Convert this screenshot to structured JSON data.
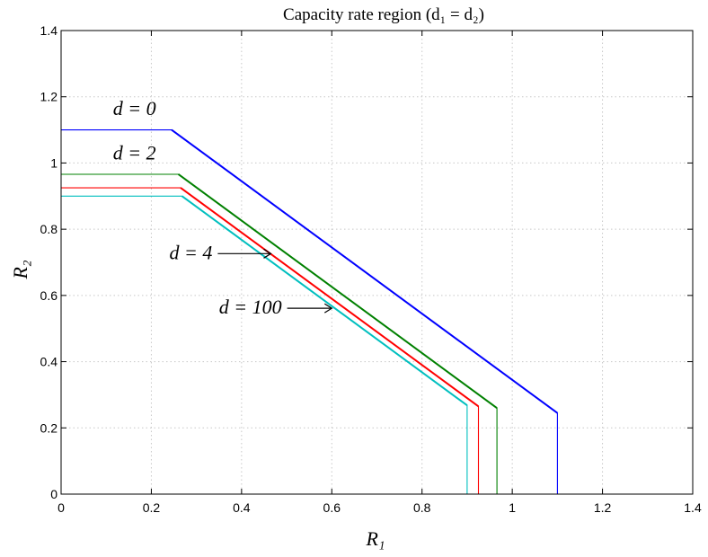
{
  "chart_data": {
    "type": "line",
    "title": "Capacity rate region (d₁ = d₂)",
    "xlabel": "R₁",
    "ylabel": "R₂",
    "xlim": [
      0,
      1.4
    ],
    "ylim": [
      0,
      1.4
    ],
    "xticks": [
      "0",
      "0.2",
      "0.4",
      "0.6",
      "0.8",
      "1",
      "1.2",
      "1.4"
    ],
    "yticks": [
      "0",
      "0.2",
      "0.4",
      "0.6",
      "0.8",
      "1",
      "1.2",
      "1.4"
    ],
    "grid": true,
    "series": [
      {
        "color": "#0000ff",
        "x": [
          0,
          0.245,
          1.1,
          1.1
        ],
        "y": [
          1.1,
          1.1,
          0.245,
          0
        ]
      },
      {
        "color": "#008000",
        "x": [
          0,
          0.26,
          0.966,
          0.966
        ],
        "y": [
          0.966,
          0.966,
          0.26,
          0
        ]
      },
      {
        "color": "#ff0000",
        "x": [
          0,
          0.265,
          0.925,
          0.925
        ],
        "y": [
          0.925,
          0.925,
          0.265,
          0
        ]
      },
      {
        "color": "#00bfbf",
        "x": [
          0,
          0.268,
          0.9,
          0.9
        ],
        "y": [
          0.9,
          0.9,
          0.268,
          0
        ]
      }
    ],
    "annotations": [
      {
        "text": "d = 0",
        "x": 0.115,
        "y": 1.145,
        "arrow": false
      },
      {
        "text": "d = 2",
        "x": 0.115,
        "y": 1.01,
        "arrow": false
      },
      {
        "text": "d = 4",
        "x": 0.24,
        "y": 0.71,
        "arrow": true,
        "arrow_to": [
          0.465,
          0.71
        ]
      },
      {
        "text": "d = 100",
        "x": 0.35,
        "y": 0.545,
        "arrow": true,
        "arrow_to": [
          0.6,
          0.545
        ]
      }
    ]
  }
}
